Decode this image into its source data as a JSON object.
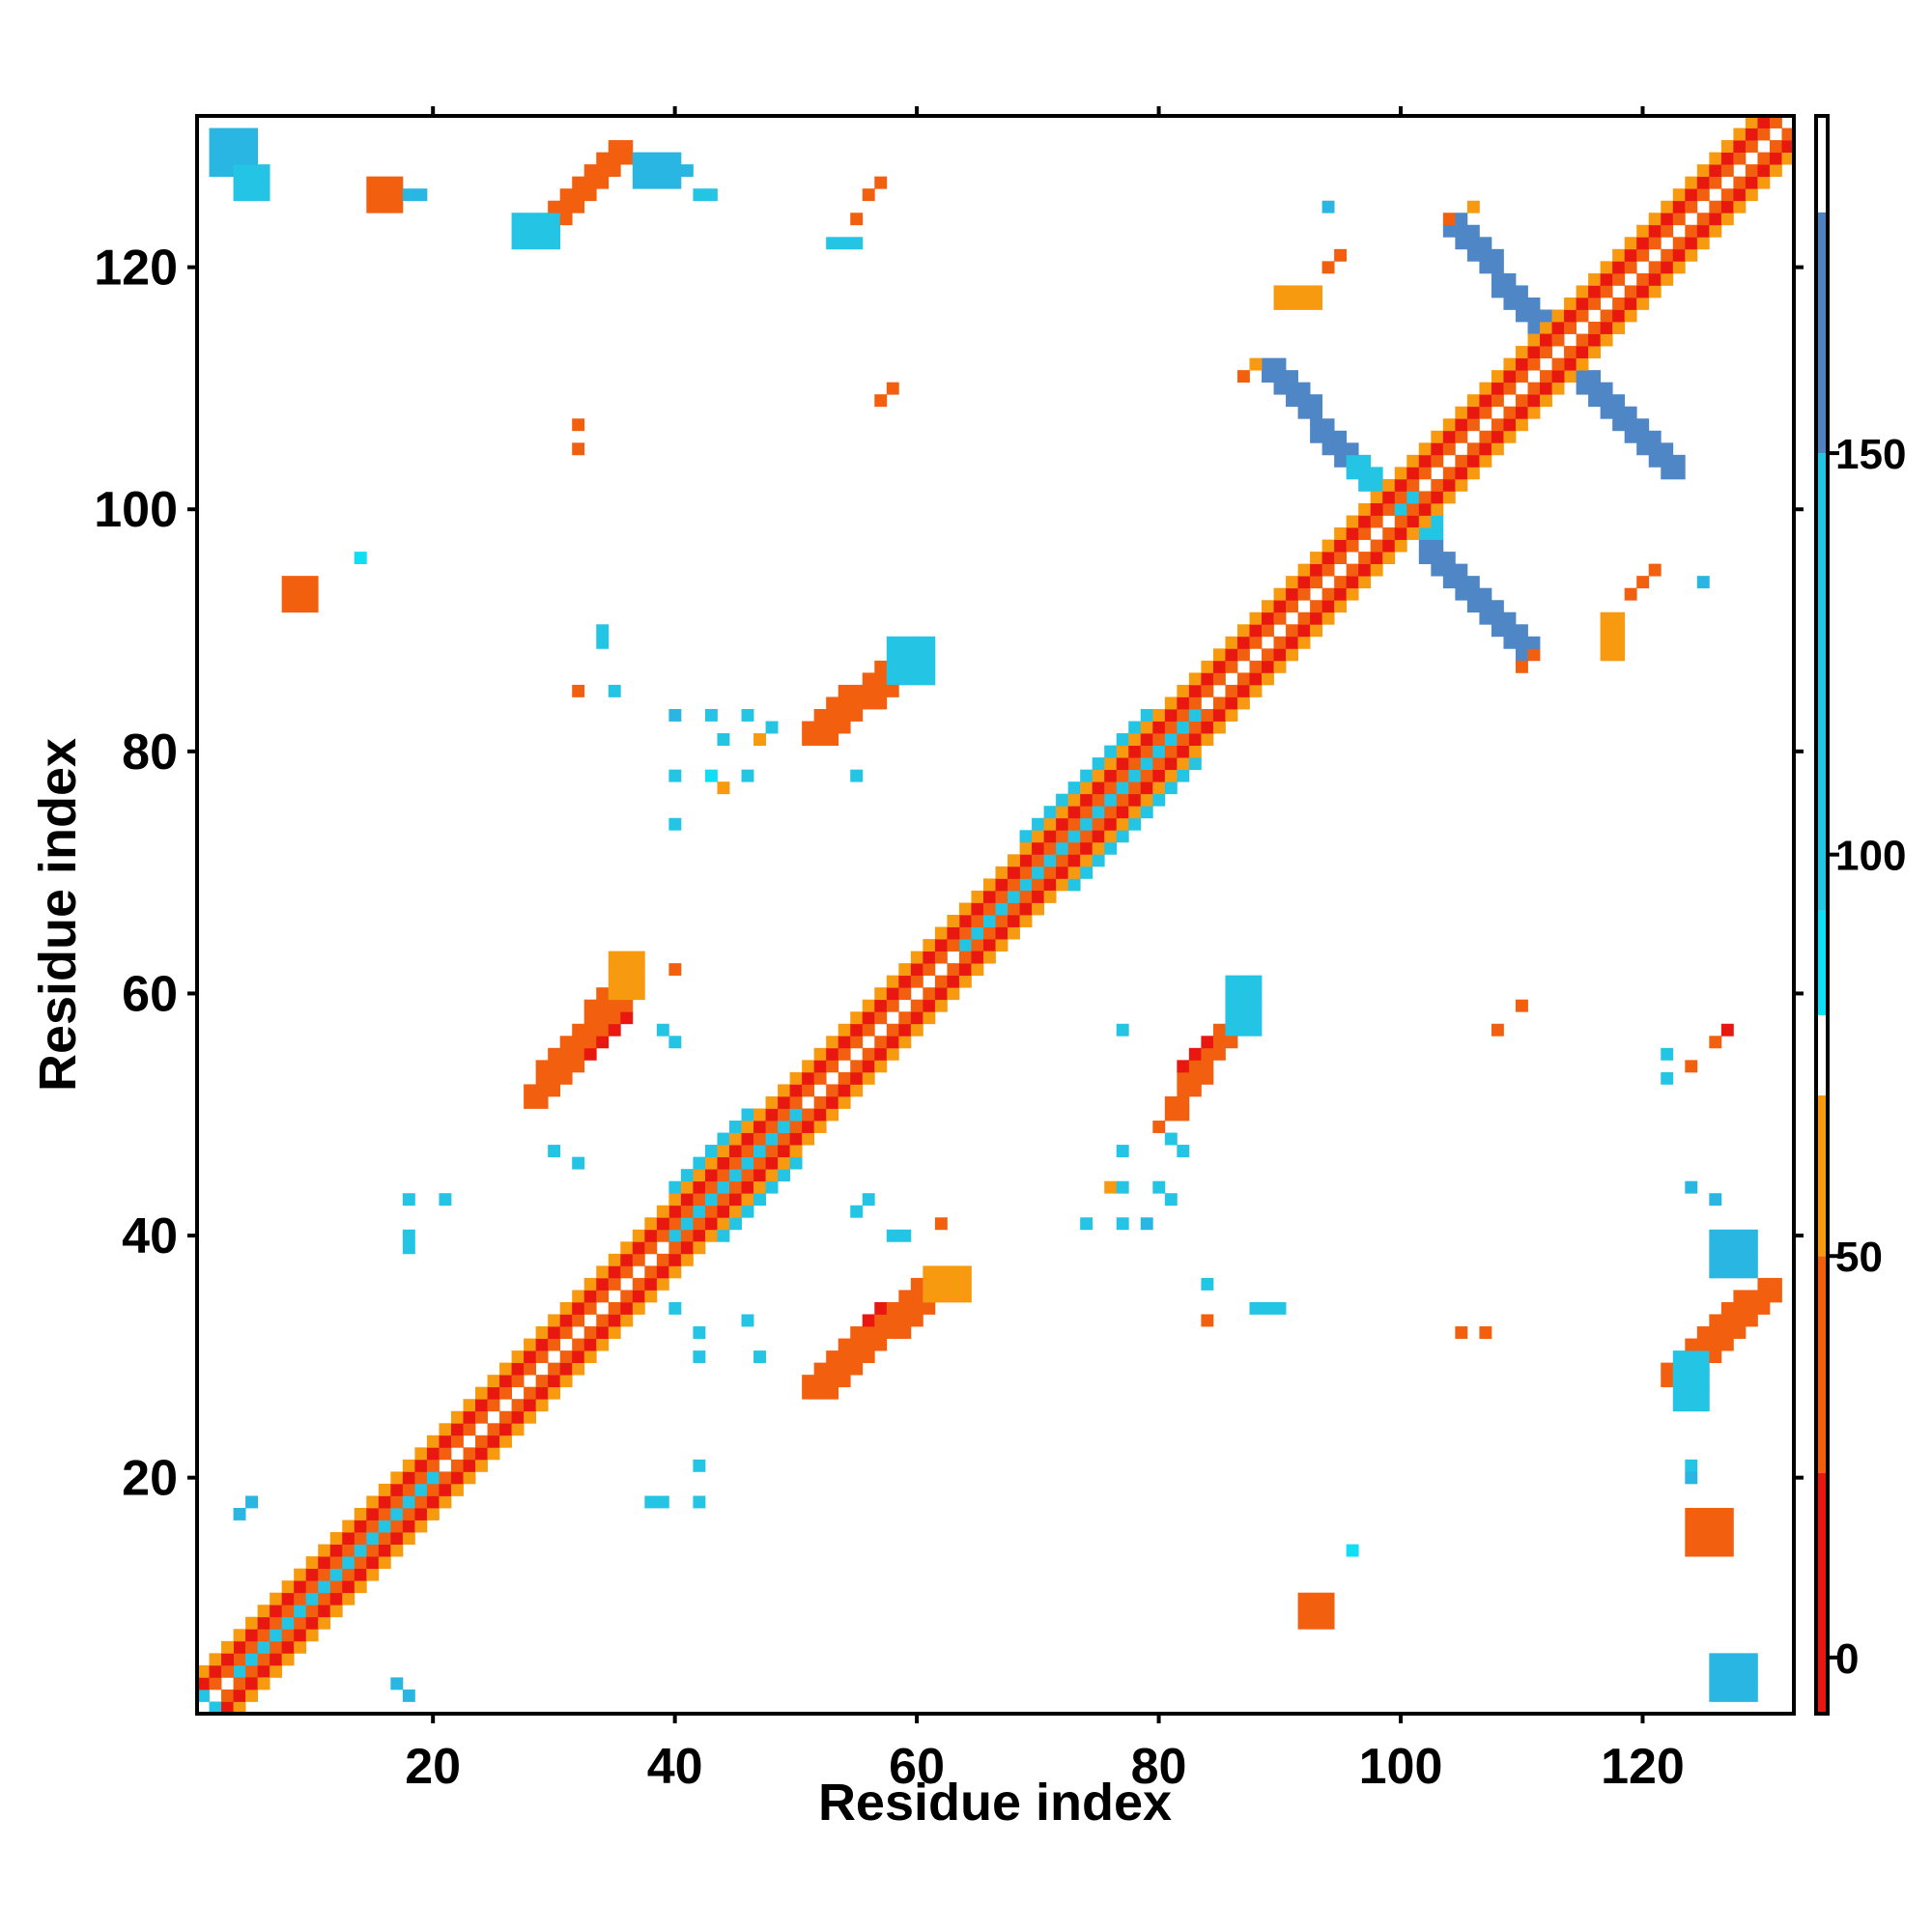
{
  "chart_data": {
    "type": "heatmap",
    "xlabel": "Residue index",
    "ylabel": "Residue index",
    "xlim": [
      1,
      132
    ],
    "ylim": [
      1,
      132
    ],
    "x_ticks": [
      20,
      40,
      60,
      80,
      100,
      120
    ],
    "y_ticks": [
      20,
      40,
      60,
      80,
      100,
      120
    ],
    "colorbar": {
      "ticks": [
        0,
        50,
        100,
        150
      ],
      "range": [
        -7,
        192
      ],
      "bands": [
        {
          "from": -7,
          "to": 23,
          "color": "#e8170f"
        },
        {
          "from": 23,
          "to": 50,
          "color": "#f2600f"
        },
        {
          "from": 50,
          "to": 70,
          "color": "#f89a10"
        },
        {
          "from": 70,
          "to": 80,
          "color": "#ffffff"
        },
        {
          "from": 80,
          "to": 93,
          "color": "#0fdff5"
        },
        {
          "from": 93,
          "to": 150,
          "color": "#24c4e4"
        },
        {
          "from": 150,
          "to": 180,
          "color": "#4f82c1"
        },
        {
          "from": 180,
          "to": 192,
          "color": "#ffffff"
        }
      ]
    },
    "palette": {
      "red": "#e8170f",
      "orange_red": "#f2600f",
      "orange": "#f89a10",
      "cyan": "#1ad2ea",
      "sky": "#2ab6e2",
      "steel": "#4f87c6"
    },
    "diagonal": {
      "from": 1,
      "to": 132,
      "offsets": [
        {
          "d": 1,
          "color": "#f2600f"
        },
        {
          "d": 2,
          "color": "#e8170f"
        },
        {
          "d": 3,
          "color": "#f89a10"
        }
      ]
    },
    "clusters": [
      {
        "x": [
          29,
          36
        ],
        "y": [
          52,
          59
        ],
        "slope": 1,
        "width": 2.6,
        "color": "#e8170f"
      },
      {
        "x": [
          28,
          37
        ],
        "y": [
          51,
          62
        ],
        "slope": 1,
        "width": 3.8,
        "color": "#f2600f"
      },
      {
        "x": [
          53,
          58
        ],
        "y": [
          29,
          34
        ],
        "slope": 1,
        "width": 2.6,
        "color": "#e8170f"
      },
      {
        "x": [
          51,
          63
        ],
        "y": [
          27,
          37
        ],
        "slope": 1,
        "width": 3.6,
        "color": "#f2600f"
      },
      {
        "x": [
          53,
          58
        ],
        "y": [
          82,
          87
        ],
        "slope": 1,
        "width": 2.4,
        "color": "#e8170f"
      },
      {
        "x": [
          51,
          60
        ],
        "y": [
          81,
          88
        ],
        "slope": 1,
        "width": 3.4,
        "color": "#f2600f"
      },
      {
        "x": [
          82,
          87
        ],
        "y": [
          53,
          59
        ],
        "slope": 1,
        "width": 2.4,
        "color": "#e8170f"
      },
      {
        "x": [
          81,
          88
        ],
        "y": [
          50,
          60
        ],
        "slope": 1,
        "width": 3.4,
        "color": "#f2600f"
      },
      {
        "x": [
          30,
          34
        ],
        "y": [
          124,
          129
        ],
        "slope": 1,
        "width": 2.4,
        "color": "#e8170f"
      },
      {
        "x": [
          28,
          36
        ],
        "y": [
          122,
          130
        ],
        "slope": 1,
        "width": 3.4,
        "color": "#f2600f"
      },
      {
        "x": [
          124,
          129
        ],
        "y": [
          30,
          34
        ],
        "slope": 1,
        "width": 2.4,
        "color": "#e8170f"
      },
      {
        "x": [
          122,
          131
        ],
        "y": [
          28,
          36
        ],
        "slope": 1,
        "width": 3.4,
        "color": "#f2600f"
      },
      {
        "x": [
          89,
          97
        ],
        "y": [
          103,
          112
        ],
        "slope": -1,
        "width": 3.2,
        "color": "#4f87c6"
      },
      {
        "x": [
          102,
          111
        ],
        "y": [
          88,
          97
        ],
        "slope": -1,
        "width": 3.2,
        "color": "#4f87c6"
      },
      {
        "x": [
          104,
          112
        ],
        "y": [
          115,
          124
        ],
        "slope": -1,
        "width": 3.2,
        "color": "#4f87c6"
      },
      {
        "x": [
          114,
          123
        ],
        "y": [
          103,
          112
        ],
        "slope": -1,
        "width": 3.2,
        "color": "#4f87c6"
      },
      {
        "x": [
          96,
          103
        ],
        "y": [
          98,
          104
        ],
        "slope": -1,
        "width": 3,
        "color": "#24c4e4"
      },
      {
        "x": [
          40,
          50
        ],
        "y": [
          40,
          50
        ],
        "slope": 1,
        "width": 9,
        "color": "#24c4e4"
      },
      {
        "x": [
          69,
          83
        ],
        "y": [
          69,
          83
        ],
        "slope": 1,
        "width": 9,
        "color": "#24c4e4"
      },
      {
        "x": [
          4,
          20
        ],
        "y": [
          4,
          20
        ],
        "slope": 1,
        "width": 6,
        "color": "#24c4e4"
      },
      {
        "x": [
          64,
          70
        ],
        "y": [
          64,
          70
        ],
        "slope": 1,
        "width": 6,
        "color": "#24c4e4"
      }
    ],
    "blocks": [
      {
        "x": [
          15,
          17
        ],
        "y": [
          125,
          127
        ],
        "color": "#f2600f"
      },
      {
        "x": [
          8,
          10
        ],
        "y": [
          92,
          94
        ],
        "color": "#f2600f"
      },
      {
        "x": [
          2,
          5
        ],
        "y": [
          128,
          131
        ],
        "color": "#2ab6e2"
      },
      {
        "x": [
          4,
          6
        ],
        "y": [
          126,
          128
        ],
        "color": "#24c4e4"
      },
      {
        "x": [
          126,
          129
        ],
        "y": [
          2,
          5
        ],
        "color": "#2ab6e2"
      },
      {
        "x": [
          124,
          127
        ],
        "y": [
          14,
          17
        ],
        "color": "#f2600f"
      },
      {
        "x": [
          92,
          94
        ],
        "y": [
          8,
          10
        ],
        "color": "#f2600f"
      },
      {
        "x": [
          123,
          125
        ],
        "y": [
          26,
          30
        ],
        "color": "#24c4e4"
      },
      {
        "x": [
          27,
          30
        ],
        "y": [
          122,
          124
        ],
        "color": "#24c4e4"
      },
      {
        "x": [
          86,
          88
        ],
        "y": [
          57,
          61
        ],
        "color": "#24c4e4"
      },
      {
        "x": [
          58,
          61
        ],
        "y": [
          86,
          89
        ],
        "color": "#24c4e4"
      },
      {
        "x": [
          37,
          40
        ],
        "y": [
          127,
          129
        ],
        "color": "#2ab6e2"
      },
      {
        "x": [
          126,
          129
        ],
        "y": [
          37,
          40
        ],
        "color": "#2ab6e2"
      },
      {
        "x": [
          61,
          64
        ],
        "y": [
          35,
          37
        ],
        "color": "#f89a10"
      },
      {
        "x": [
          35,
          37
        ],
        "y": [
          60,
          63
        ],
        "color": "#f89a10"
      },
      {
        "x": [
          90,
          93
        ],
        "y": [
          117,
          118
        ],
        "color": "#f89a10"
      },
      {
        "x": [
          117,
          118
        ],
        "y": [
          88,
          91
        ],
        "color": "#f89a10"
      }
    ],
    "points": [
      {
        "x": 57,
        "y": 127,
        "color": "#f2600f"
      },
      {
        "x": 56,
        "y": 126,
        "color": "#f2600f"
      },
      {
        "x": 55,
        "y": 124,
        "color": "#f2600f"
      },
      {
        "x": 53,
        "y": 122,
        "color": "#24c4e4"
      },
      {
        "x": 54,
        "y": 122,
        "color": "#24c4e4"
      },
      {
        "x": 55,
        "y": 122,
        "color": "#24c4e4"
      },
      {
        "x": 18,
        "y": 126,
        "color": "#2ab6e2"
      },
      {
        "x": 19,
        "y": 126,
        "color": "#2ab6e2"
      },
      {
        "x": 41,
        "y": 128,
        "color": "#2ab6e2"
      },
      {
        "x": 42,
        "y": 126,
        "color": "#24c4e4"
      },
      {
        "x": 43,
        "y": 126,
        "color": "#24c4e4"
      },
      {
        "x": 58,
        "y": 110,
        "color": "#f2600f"
      },
      {
        "x": 57,
        "y": 109,
        "color": "#f2600f"
      },
      {
        "x": 32,
        "y": 107,
        "color": "#f2600f"
      },
      {
        "x": 32,
        "y": 105,
        "color": "#f2600f"
      },
      {
        "x": 14,
        "y": 96,
        "color": "#0fdff5"
      },
      {
        "x": 34,
        "y": 90,
        "color": "#24c4e4"
      },
      {
        "x": 34,
        "y": 89,
        "color": "#24c4e4"
      },
      {
        "x": 32,
        "y": 85,
        "color": "#f2600f"
      },
      {
        "x": 35,
        "y": 85,
        "color": "#24c4e4"
      },
      {
        "x": 40,
        "y": 83,
        "color": "#2ab6e2"
      },
      {
        "x": 43,
        "y": 83,
        "color": "#24c4e4"
      },
      {
        "x": 46,
        "y": 83,
        "color": "#24c4e4"
      },
      {
        "x": 48,
        "y": 82,
        "color": "#24c4e4"
      },
      {
        "x": 44,
        "y": 81,
        "color": "#24c4e4"
      },
      {
        "x": 47,
        "y": 81,
        "color": "#f89a10"
      },
      {
        "x": 40,
        "y": 78,
        "color": "#24c4e4"
      },
      {
        "x": 43,
        "y": 78,
        "color": "#0fdff5"
      },
      {
        "x": 44,
        "y": 77,
        "color": "#f89a10"
      },
      {
        "x": 46,
        "y": 78,
        "color": "#24c4e4"
      },
      {
        "x": 55,
        "y": 78,
        "color": "#24c4e4"
      },
      {
        "x": 40,
        "y": 74,
        "color": "#24c4e4"
      },
      {
        "x": 40,
        "y": 62,
        "color": "#f2600f"
      },
      {
        "x": 39,
        "y": 57,
        "color": "#24c4e4"
      },
      {
        "x": 40,
        "y": 56,
        "color": "#24c4e4"
      },
      {
        "x": 30,
        "y": 47,
        "color": "#24c4e4"
      },
      {
        "x": 32,
        "y": 46,
        "color": "#24c4e4"
      },
      {
        "x": 18,
        "y": 43,
        "color": "#24c4e4"
      },
      {
        "x": 21,
        "y": 43,
        "color": "#24c4e4"
      },
      {
        "x": 18,
        "y": 39,
        "color": "#24c4e4"
      },
      {
        "x": 18,
        "y": 40,
        "color": "#24c4e4"
      },
      {
        "x": 40,
        "y": 34,
        "color": "#24c4e4"
      },
      {
        "x": 42,
        "y": 32,
        "color": "#24c4e4"
      },
      {
        "x": 46,
        "y": 33,
        "color": "#24c4e4"
      },
      {
        "x": 47,
        "y": 30,
        "color": "#24c4e4"
      },
      {
        "x": 42,
        "y": 30,
        "color": "#24c4e4"
      },
      {
        "x": 38,
        "y": 18,
        "color": "#24c4e4"
      },
      {
        "x": 39,
        "y": 18,
        "color": "#24c4e4"
      },
      {
        "x": 42,
        "y": 18,
        "color": "#24c4e4"
      },
      {
        "x": 42,
        "y": 21,
        "color": "#24c4e4"
      },
      {
        "x": 17,
        "y": 3,
        "color": "#2ab6e2"
      },
      {
        "x": 18,
        "y": 2,
        "color": "#2ab6e2"
      },
      {
        "x": 4,
        "y": 17,
        "color": "#2ab6e2"
      },
      {
        "x": 5,
        "y": 18,
        "color": "#2ab6e2"
      },
      {
        "x": 1,
        "y": 2,
        "color": "#24c4e4"
      },
      {
        "x": 2,
        "y": 1,
        "color": "#24c4e4"
      },
      {
        "x": 62,
        "y": 41,
        "color": "#f2600f"
      },
      {
        "x": 58,
        "y": 40,
        "color": "#24c4e4"
      },
      {
        "x": 59,
        "y": 40,
        "color": "#24c4e4"
      },
      {
        "x": 55,
        "y": 42,
        "color": "#24c4e4"
      },
      {
        "x": 56,
        "y": 43,
        "color": "#24c4e4"
      },
      {
        "x": 74,
        "y": 41,
        "color": "#24c4e4"
      },
      {
        "x": 77,
        "y": 41,
        "color": "#24c4e4"
      },
      {
        "x": 79,
        "y": 41,
        "color": "#2ab6e2"
      },
      {
        "x": 77,
        "y": 47,
        "color": "#24c4e4"
      },
      {
        "x": 76,
        "y": 44,
        "color": "#f89a10"
      },
      {
        "x": 77,
        "y": 44,
        "color": "#24c4e4"
      },
      {
        "x": 80,
        "y": 44,
        "color": "#24c4e4"
      },
      {
        "x": 81,
        "y": 43,
        "color": "#24c4e4"
      },
      {
        "x": 80,
        "y": 49,
        "color": "#f2600f"
      },
      {
        "x": 81,
        "y": 48,
        "color": "#24c4e4"
      },
      {
        "x": 82,
        "y": 47,
        "color": "#24c4e4"
      },
      {
        "x": 77,
        "y": 57,
        "color": "#24c4e4"
      },
      {
        "x": 84,
        "y": 36,
        "color": "#24c4e4"
      },
      {
        "x": 84,
        "y": 33,
        "color": "#f2600f"
      },
      {
        "x": 88,
        "y": 34,
        "color": "#24c4e4"
      },
      {
        "x": 89,
        "y": 34,
        "color": "#24c4e4"
      },
      {
        "x": 90,
        "y": 34,
        "color": "#24c4e4"
      },
      {
        "x": 105,
        "y": 32,
        "color": "#f2600f"
      },
      {
        "x": 107,
        "y": 32,
        "color": "#f2600f"
      },
      {
        "x": 96,
        "y": 14,
        "color": "#0fdff5"
      },
      {
        "x": 110,
        "y": 59,
        "color": "#f2600f"
      },
      {
        "x": 108,
        "y": 57,
        "color": "#f2600f"
      },
      {
        "x": 122,
        "y": 55,
        "color": "#24c4e4"
      },
      {
        "x": 122,
        "y": 53,
        "color": "#24c4e4"
      },
      {
        "x": 124,
        "y": 54,
        "color": "#f2600f"
      },
      {
        "x": 126,
        "y": 56,
        "color": "#f2600f"
      },
      {
        "x": 127,
        "y": 57,
        "color": "#e8170f"
      },
      {
        "x": 124,
        "y": 44,
        "color": "#2ab6e2"
      },
      {
        "x": 126,
        "y": 43,
        "color": "#2ab6e2"
      },
      {
        "x": 124,
        "y": 21,
        "color": "#24c4e4"
      },
      {
        "x": 124,
        "y": 20,
        "color": "#2ab6e2"
      },
      {
        "x": 125,
        "y": 94,
        "color": "#2ab6e2"
      },
      {
        "x": 121,
        "y": 95,
        "color": "#f2600f"
      },
      {
        "x": 120,
        "y": 94,
        "color": "#f2600f"
      },
      {
        "x": 119,
        "y": 93,
        "color": "#f2600f"
      },
      {
        "x": 111,
        "y": 88,
        "color": "#f2600f"
      },
      {
        "x": 110,
        "y": 87,
        "color": "#f2600f"
      },
      {
        "x": 94,
        "y": 125,
        "color": "#2ab6e2"
      },
      {
        "x": 95,
        "y": 121,
        "color": "#f2600f"
      },
      {
        "x": 94,
        "y": 120,
        "color": "#f2600f"
      },
      {
        "x": 92,
        "y": 118,
        "color": "#f89a10"
      },
      {
        "x": 106,
        "y": 125,
        "color": "#f89a10"
      },
      {
        "x": 104,
        "y": 124,
        "color": "#f2600f"
      },
      {
        "x": 88,
        "y": 112,
        "color": "#f89a10"
      },
      {
        "x": 87,
        "y": 111,
        "color": "#f2600f"
      }
    ]
  }
}
